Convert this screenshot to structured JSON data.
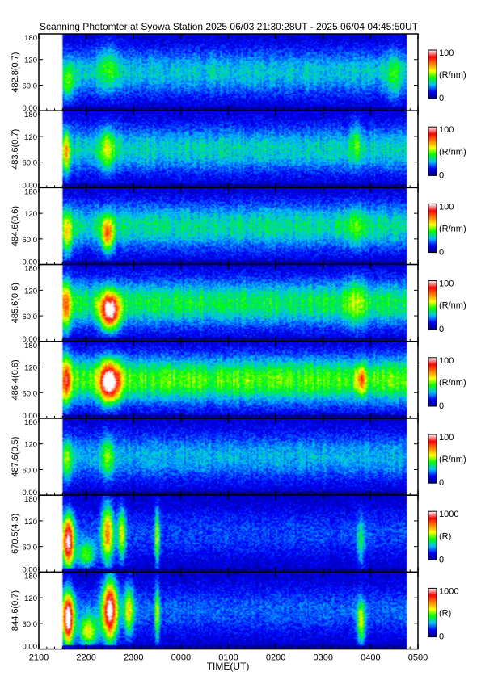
{
  "title": "Scanning Photomter at Syowa Station  2025 06/03 21:30:28UT - 2025 06/04 04:45:50UT",
  "chart_data": {
    "type": "heatmap",
    "x_label": "TIME(UT)",
    "x_range_hours": [
      21,
      29
    ],
    "x_ticks": [
      "2100",
      "2200",
      "2300",
      "0000",
      "0100",
      "0200",
      "0300",
      "0400",
      "0500"
    ],
    "data_range_hours": [
      21.508,
      28.764
    ],
    "y_ticks": [
      "0.00",
      "60.0",
      "120",
      "180"
    ],
    "y_range": [
      0,
      180
    ],
    "colormap": [
      "#000080",
      "#0000ff",
      "#00c0ff",
      "#00ff00",
      "#ffff00",
      "#ff8000",
      "#ff0000",
      "#ffffff"
    ],
    "panels": [
      {
        "ylabel": "482.8(0.7)",
        "cb_max": "100",
        "cb_min": "0",
        "cb_unit": "(R/nm)",
        "intensity": 0.5,
        "features": [
          {
            "t": 21.6,
            "el": 60,
            "dt": 0.15,
            "del": 40,
            "amp": 0.2
          },
          {
            "t": 22.45,
            "el": 100,
            "dt": 0.2,
            "del": 60,
            "amp": 0.15
          },
          {
            "t": 28.5,
            "el": 80,
            "dt": 0.15,
            "del": 60,
            "amp": 0.15
          }
        ]
      },
      {
        "ylabel": "483.6(0.7)",
        "cb_max": "100",
        "cb_min": "0",
        "cb_unit": "(R/nm)",
        "intensity": 0.55,
        "features": [
          {
            "t": 21.58,
            "el": 80,
            "dt": 0.08,
            "del": 50,
            "amp": 0.35
          },
          {
            "t": 22.45,
            "el": 90,
            "dt": 0.15,
            "del": 50,
            "amp": 0.25
          },
          {
            "t": 27.7,
            "el": 110,
            "dt": 0.1,
            "del": 50,
            "amp": 0.15
          }
        ]
      },
      {
        "ylabel": "484.6(0.6)",
        "cb_max": "100",
        "cb_min": "0",
        "cb_unit": "(R/nm)",
        "intensity": 0.6,
        "features": [
          {
            "t": 21.6,
            "el": 70,
            "dt": 0.1,
            "del": 50,
            "amp": 0.3
          },
          {
            "t": 22.45,
            "el": 70,
            "dt": 0.12,
            "del": 40,
            "amp": 0.45
          },
          {
            "t": 27.7,
            "el": 90,
            "dt": 0.15,
            "del": 50,
            "amp": 0.15
          }
        ]
      },
      {
        "ylabel": "485.6(0.6)",
        "cb_max": "100",
        "cb_min": "0",
        "cb_unit": "(R/nm)",
        "intensity": 0.7,
        "features": [
          {
            "t": 21.58,
            "el": 80,
            "dt": 0.1,
            "del": 60,
            "amp": 0.4
          },
          {
            "t": 22.5,
            "el": 70,
            "dt": 0.2,
            "del": 40,
            "amp": 0.75
          },
          {
            "t": 27.7,
            "el": 90,
            "dt": 0.2,
            "del": 60,
            "amp": 0.15
          }
        ]
      },
      {
        "ylabel": "486.4(0.6)",
        "cb_max": "100",
        "cb_min": "0",
        "cb_unit": "(R/nm)",
        "intensity": 0.85,
        "features": [
          {
            "t": 21.58,
            "el": 90,
            "dt": 0.1,
            "del": 60,
            "amp": 0.4
          },
          {
            "t": 22.5,
            "el": 85,
            "dt": 0.2,
            "del": 45,
            "amp": 0.75
          },
          {
            "t": 27.8,
            "el": 90,
            "dt": 0.1,
            "del": 30,
            "amp": 0.3
          }
        ]
      },
      {
        "ylabel": "487.6(0.5)",
        "cb_max": "100",
        "cb_min": "0",
        "cb_unit": "(R/nm)",
        "intensity": 0.45,
        "features": [
          {
            "t": 21.6,
            "el": 80,
            "dt": 0.1,
            "del": 50,
            "amp": 0.25
          },
          {
            "t": 22.45,
            "el": 90,
            "dt": 0.12,
            "del": 50,
            "amp": 0.25
          }
        ]
      },
      {
        "ylabel": "670.5(4.3)",
        "cb_max": "1000",
        "cb_min": "0",
        "cb_unit": "(R)",
        "intensity": 0.25,
        "features": [
          {
            "t": 21.62,
            "el": 70,
            "dt": 0.12,
            "del": 60,
            "amp": 0.85
          },
          {
            "t": 22.0,
            "el": 40,
            "dt": 0.2,
            "del": 30,
            "amp": 0.35
          },
          {
            "t": 22.45,
            "el": 90,
            "dt": 0.12,
            "del": 70,
            "amp": 0.55
          },
          {
            "t": 22.75,
            "el": 90,
            "dt": 0.08,
            "del": 60,
            "amp": 0.4
          },
          {
            "t": 23.5,
            "el": 80,
            "dt": 0.05,
            "del": 70,
            "amp": 0.35
          },
          {
            "t": 27.8,
            "el": 70,
            "dt": 0.08,
            "del": 60,
            "amp": 0.2
          }
        ]
      },
      {
        "ylabel": "844.6(0.7)",
        "cb_max": "1000",
        "cb_min": "0",
        "cb_unit": "(R)",
        "intensity": 0.3,
        "features": [
          {
            "t": 21.62,
            "el": 70,
            "dt": 0.12,
            "del": 60,
            "amp": 0.9
          },
          {
            "t": 22.05,
            "el": 40,
            "dt": 0.2,
            "del": 35,
            "amp": 0.45
          },
          {
            "t": 22.5,
            "el": 90,
            "dt": 0.15,
            "del": 70,
            "amp": 0.85
          },
          {
            "t": 22.9,
            "el": 90,
            "dt": 0.1,
            "del": 60,
            "amp": 0.4
          },
          {
            "t": 23.5,
            "el": 80,
            "dt": 0.05,
            "del": 70,
            "amp": 0.35
          },
          {
            "t": 27.8,
            "el": 60,
            "dt": 0.08,
            "del": 50,
            "amp": 0.4
          }
        ]
      }
    ]
  }
}
